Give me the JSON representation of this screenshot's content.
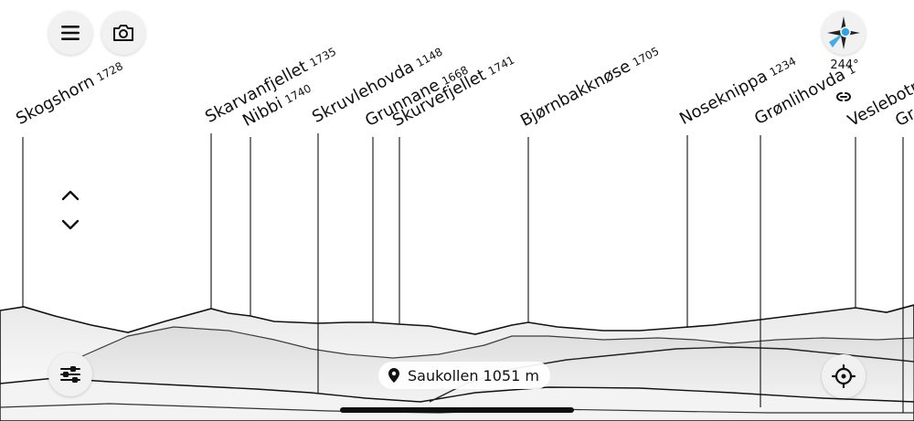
{
  "toolbar": {
    "menu_icon": "hamburger-menu-icon",
    "camera_icon": "camera-icon",
    "compass_icon": "compass-icon",
    "heading": "244°",
    "link_icon": "link-icon",
    "up_icon": "chevron-up-icon",
    "down_icon": "chevron-down-icon",
    "filter_icon": "sliders-icon",
    "locate_icon": "crosshair-icon"
  },
  "peaks": [
    {
      "name": "Skogshorn",
      "elevation": "1728"
    },
    {
      "name": "Skarvanfjellet",
      "elevation": "1735"
    },
    {
      "name": "Nibbi",
      "elevation": "1740"
    },
    {
      "name": "Skruvlehovda",
      "elevation": "1148"
    },
    {
      "name": "Grunnane",
      "elevation": "1668"
    },
    {
      "name": "Skurvefjellet",
      "elevation": "1741"
    },
    {
      "name": "Bjørnbakknøse",
      "elevation": "1705"
    },
    {
      "name": "Noseknippa",
      "elevation": "1234"
    },
    {
      "name": "Grønlihovda",
      "elevation": "1"
    },
    {
      "name": "Veslebotnsk",
      "elevation": ""
    },
    {
      "name": "Gr",
      "elevation": ""
    }
  ],
  "location": {
    "icon": "location-pin-icon",
    "label": "Saukollen 1051 m"
  },
  "colors": {
    "button_bg": "#f1f1f1",
    "compass_accent": "#2fa4e7",
    "ink": "#111111"
  }
}
